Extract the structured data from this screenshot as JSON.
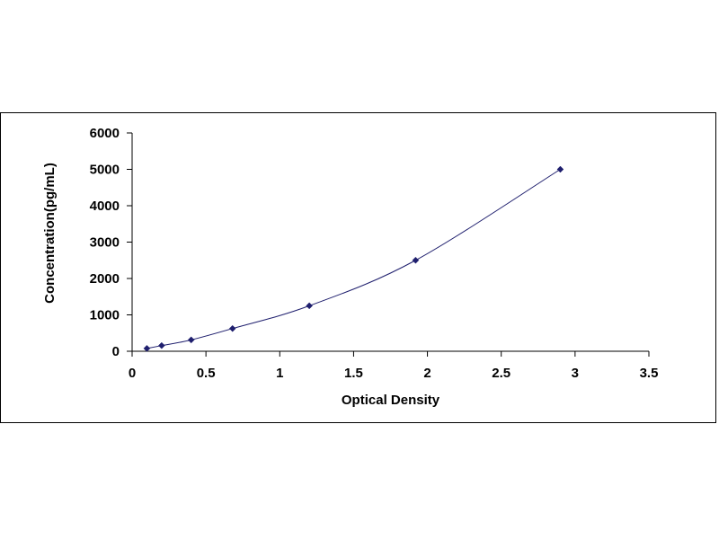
{
  "chart_data": {
    "type": "scatter",
    "title": "",
    "xlabel": "Optical Density",
    "ylabel": "Concentration(pg/mL)",
    "xlim": [
      0,
      3.5
    ],
    "ylim": [
      0,
      6000
    ],
    "x_ticks": [
      0,
      0.5,
      1,
      1.5,
      2,
      2.5,
      3,
      3.5
    ],
    "x_tick_labels": [
      "0",
      "0.5",
      "1",
      "1.5",
      "2",
      "2.5",
      "3",
      "3.5"
    ],
    "y_ticks": [
      0,
      1000,
      2000,
      3000,
      4000,
      5000,
      6000
    ],
    "y_tick_labels": [
      "0",
      "1000",
      "2000",
      "3000",
      "4000",
      "5000",
      "6000"
    ],
    "grid": false,
    "legend": "none",
    "marker": "diamond",
    "marker_color": "#1f1f6e",
    "line_color": "#1f1f6e",
    "trendline": "smooth curve through points",
    "series": [
      {
        "x": [
          0.1,
          0.2,
          0.4,
          0.68,
          1.2,
          1.92,
          2.9
        ],
        "y": [
          78,
          156,
          312,
          625,
          1250,
          2500,
          5000
        ]
      }
    ]
  }
}
